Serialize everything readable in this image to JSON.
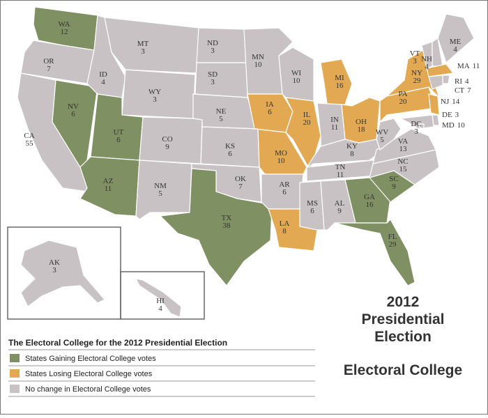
{
  "title_lines": [
    "2012",
    "Presidential",
    "Election"
  ],
  "subtitle": "Electoral College",
  "legend": {
    "title": "The Electoral College for the 2012 Presidential Election",
    "items": [
      {
        "label": "States Gaining Electoral College votes",
        "color": "#7f9163"
      },
      {
        "label": "States Losing Electoral College votes",
        "color": "#e2a952"
      },
      {
        "label": "No change in Electoral College votes",
        "color": "#c8c2c5"
      }
    ]
  },
  "states": [
    {
      "abbr": "WA",
      "votes": 12,
      "color": "#7f9163"
    },
    {
      "abbr": "OR",
      "votes": 7,
      "color": "#c8c2c5"
    },
    {
      "abbr": "CA",
      "votes": 55,
      "color": "#c8c2c5"
    },
    {
      "abbr": "NV",
      "votes": 6,
      "color": "#7f9163"
    },
    {
      "abbr": "ID",
      "votes": 4,
      "color": "#c8c2c5"
    },
    {
      "abbr": "MT",
      "votes": 3,
      "color": "#c8c2c5"
    },
    {
      "abbr": "WY",
      "votes": 3,
      "color": "#c8c2c5"
    },
    {
      "abbr": "UT",
      "votes": 6,
      "color": "#7f9163"
    },
    {
      "abbr": "AZ",
      "votes": 11,
      "color": "#7f9163"
    },
    {
      "abbr": "CO",
      "votes": 9,
      "color": "#c8c2c5"
    },
    {
      "abbr": "NM",
      "votes": 5,
      "color": "#c8c2c5"
    },
    {
      "abbr": "ND",
      "votes": 3,
      "color": "#c8c2c5"
    },
    {
      "abbr": "SD",
      "votes": 3,
      "color": "#c8c2c5"
    },
    {
      "abbr": "NE",
      "votes": 5,
      "color": "#c8c2c5"
    },
    {
      "abbr": "KS",
      "votes": 6,
      "color": "#c8c2c5"
    },
    {
      "abbr": "OK",
      "votes": 7,
      "color": "#c8c2c5"
    },
    {
      "abbr": "TX",
      "votes": 38,
      "color": "#7f9163"
    },
    {
      "abbr": "MN",
      "votes": 10,
      "color": "#c8c2c5"
    },
    {
      "abbr": "IA",
      "votes": 6,
      "color": "#e2a952"
    },
    {
      "abbr": "MO",
      "votes": 10,
      "color": "#e2a952"
    },
    {
      "abbr": "AR",
      "votes": 6,
      "color": "#c8c2c5"
    },
    {
      "abbr": "LA",
      "votes": 8,
      "color": "#e2a952"
    },
    {
      "abbr": "WI",
      "votes": 10,
      "color": "#c8c2c5"
    },
    {
      "abbr": "IL",
      "votes": 20,
      "color": "#e2a952"
    },
    {
      "abbr": "MI",
      "votes": 16,
      "color": "#e2a952"
    },
    {
      "abbr": "IN",
      "votes": 11,
      "color": "#c8c2c5"
    },
    {
      "abbr": "OH",
      "votes": 18,
      "color": "#e2a952"
    },
    {
      "abbr": "KY",
      "votes": 8,
      "color": "#c8c2c5"
    },
    {
      "abbr": "TN",
      "votes": 11,
      "color": "#c8c2c5"
    },
    {
      "abbr": "MS",
      "votes": 6,
      "color": "#c8c2c5"
    },
    {
      "abbr": "AL",
      "votes": 9,
      "color": "#c8c2c5"
    },
    {
      "abbr": "GA",
      "votes": 16,
      "color": "#7f9163"
    },
    {
      "abbr": "FL",
      "votes": 29,
      "color": "#7f9163"
    },
    {
      "abbr": "SC",
      "votes": 9,
      "color": "#7f9163"
    },
    {
      "abbr": "NC",
      "votes": 15,
      "color": "#c8c2c5"
    },
    {
      "abbr": "VA",
      "votes": 13,
      "color": "#c8c2c5"
    },
    {
      "abbr": "WV",
      "votes": 5,
      "color": "#c8c2c5"
    },
    {
      "abbr": "PA",
      "votes": 20,
      "color": "#e2a952"
    },
    {
      "abbr": "NY",
      "votes": 29,
      "color": "#e2a952"
    },
    {
      "abbr": "VT",
      "votes": 3,
      "color": "#c8c2c5"
    },
    {
      "abbr": "NH",
      "votes": 4,
      "color": "#c8c2c5"
    },
    {
      "abbr": "ME",
      "votes": 4,
      "color": "#c8c2c5"
    },
    {
      "abbr": "MA",
      "votes": 11,
      "color": "#e2a952"
    },
    {
      "abbr": "RI",
      "votes": 4,
      "color": "#c8c2c5"
    },
    {
      "abbr": "CT",
      "votes": 7,
      "color": "#c8c2c5"
    },
    {
      "abbr": "NJ",
      "votes": 14,
      "color": "#e2a952"
    },
    {
      "abbr": "DE",
      "votes": 3,
      "color": "#c8c2c5"
    },
    {
      "abbr": "MD",
      "votes": 10,
      "color": "#c8c2c5"
    },
    {
      "abbr": "DC",
      "votes": 3,
      "color": "#c8c2c5"
    },
    {
      "abbr": "AK",
      "votes": 3,
      "color": "#c8c2c5"
    },
    {
      "abbr": "HI",
      "votes": 4,
      "color": "#c8c2c5"
    }
  ]
}
